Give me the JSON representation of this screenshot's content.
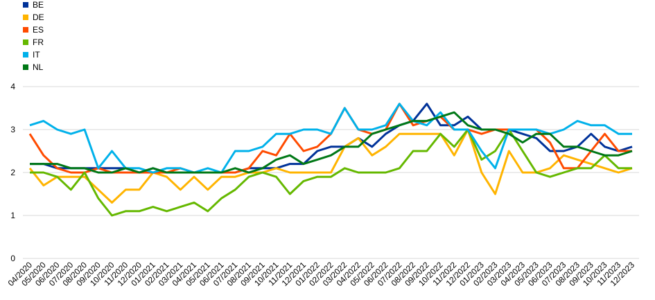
{
  "chart_data": {
    "type": "line",
    "categories": [
      "04/2020",
      "05/2020",
      "06/2020",
      "07/2020",
      "08/2020",
      "09/2020",
      "10/2020",
      "11/2020",
      "12/2020",
      "01/2021",
      "02/2021",
      "03/2021",
      "04/2021",
      "05/2021",
      "06/2021",
      "07/2021",
      "08/2021",
      "09/2021",
      "10/2021",
      "11/2021",
      "12/2021",
      "01/2022",
      "02/2022",
      "03/2022",
      "04/2022",
      "05/2022",
      "06/2022",
      "07/2022",
      "08/2022",
      "09/2022",
      "10/2022",
      "11/2022",
      "12/2022",
      "01/2023",
      "02/2023",
      "03/2023",
      "04/2023",
      "05/2023",
      "06/2023",
      "07/2023",
      "08/2023",
      "09/2023",
      "10/2023",
      "11/2023",
      "12/2023"
    ],
    "series": [
      {
        "name": "BE",
        "color": "#003299",
        "values": [
          2.2,
          2.2,
          2.1,
          2.1,
          2.1,
          2.1,
          2.1,
          2.1,
          2.0,
          2.1,
          2.0,
          2.0,
          2.0,
          2.0,
          2.0,
          2.0,
          2.1,
          2.1,
          2.1,
          2.2,
          2.2,
          2.5,
          2.6,
          2.6,
          2.8,
          2.6,
          2.9,
          3.1,
          3.2,
          3.6,
          3.1,
          3.1,
          3.3,
          3.0,
          3.0,
          3.0,
          2.9,
          2.8,
          2.5,
          2.5,
          2.6,
          2.9,
          2.6,
          2.5,
          2.6
        ]
      },
      {
        "name": "DE",
        "color": "#ffb400",
        "values": [
          2.1,
          1.7,
          1.9,
          1.9,
          1.9,
          1.6,
          1.3,
          1.6,
          1.6,
          2.0,
          1.9,
          1.6,
          1.9,
          1.6,
          1.9,
          1.9,
          2.0,
          2.0,
          2.1,
          2.0,
          2.0,
          2.0,
          2.0,
          2.6,
          2.8,
          2.4,
          2.6,
          2.9,
          2.9,
          2.9,
          2.9,
          2.4,
          3.0,
          2.0,
          1.5,
          2.5,
          2.0,
          2.0,
          2.1,
          2.4,
          2.3,
          2.2,
          2.1,
          2.0,
          2.1
        ]
      },
      {
        "name": "ES",
        "color": "#ff4b00",
        "values": [
          2.9,
          2.4,
          2.1,
          2.0,
          2.0,
          2.1,
          2.0,
          2.0,
          2.0,
          2.0,
          2.0,
          2.1,
          2.0,
          2.0,
          2.0,
          2.0,
          2.1,
          2.5,
          2.4,
          2.9,
          2.5,
          2.6,
          2.9,
          3.5,
          3.0,
          2.9,
          3.0,
          3.6,
          3.1,
          3.2,
          3.3,
          3.0,
          3.0,
          2.9,
          3.0,
          3.0,
          3.0,
          3.0,
          2.7,
          2.1,
          2.1,
          2.5,
          2.9,
          2.5,
          2.5
        ]
      },
      {
        "name": "FR",
        "color": "#65b800",
        "values": [
          2.0,
          2.0,
          1.9,
          1.6,
          2.0,
          1.4,
          1.0,
          1.1,
          1.1,
          1.2,
          1.1,
          1.2,
          1.3,
          1.1,
          1.4,
          1.6,
          1.9,
          2.0,
          1.9,
          1.5,
          1.8,
          1.9,
          1.9,
          2.1,
          2.0,
          2.0,
          2.0,
          2.1,
          2.5,
          2.5,
          2.9,
          2.6,
          3.0,
          2.3,
          2.5,
          3.0,
          2.5,
          2.0,
          1.9,
          2.0,
          2.1,
          2.1,
          2.4,
          2.1,
          2.1
        ]
      },
      {
        "name": "IT",
        "color": "#00b1ea",
        "values": [
          3.1,
          3.2,
          3.0,
          2.9,
          3.0,
          2.1,
          2.5,
          2.1,
          2.1,
          2.0,
          2.1,
          2.1,
          2.0,
          2.1,
          2.0,
          2.5,
          2.5,
          2.6,
          2.9,
          2.9,
          3.0,
          3.0,
          2.9,
          3.5,
          3.0,
          3.0,
          3.1,
          3.6,
          3.2,
          3.1,
          3.4,
          3.0,
          3.0,
          2.5,
          2.1,
          3.0,
          3.0,
          3.0,
          2.9,
          3.0,
          3.2,
          3.1,
          3.1,
          2.9,
          2.9
        ]
      },
      {
        "name": "NL",
        "color": "#007816",
        "values": [
          2.2,
          2.2,
          2.2,
          2.1,
          2.1,
          2.0,
          2.0,
          2.1,
          2.0,
          2.1,
          2.0,
          2.0,
          2.0,
          2.0,
          2.0,
          2.1,
          2.0,
          2.1,
          2.3,
          2.4,
          2.2,
          2.3,
          2.4,
          2.6,
          2.6,
          2.9,
          3.0,
          3.1,
          3.2,
          3.2,
          3.3,
          3.4,
          3.1,
          3.0,
          3.0,
          2.9,
          2.7,
          2.9,
          2.9,
          2.6,
          2.6,
          2.5,
          2.4,
          2.4,
          2.5
        ]
      }
    ],
    "ylim": [
      0,
      4
    ],
    "yticks": [
      0,
      1,
      2,
      3,
      4
    ],
    "grid": true,
    "legend": "top-left"
  }
}
